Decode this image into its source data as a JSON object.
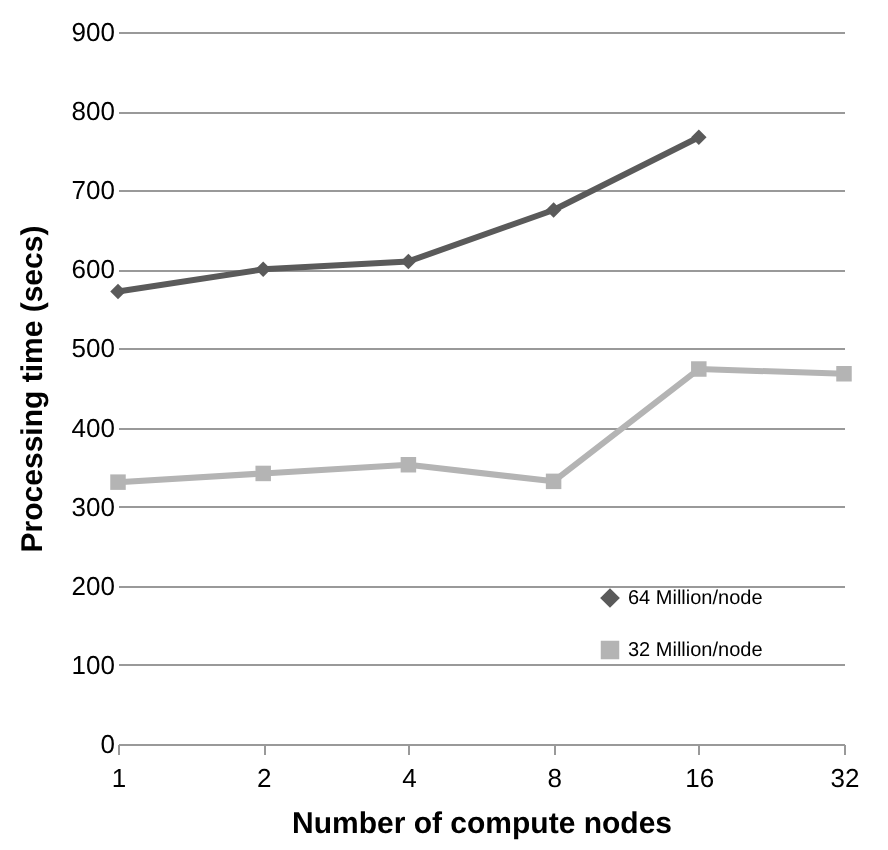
{
  "chart_data": {
    "type": "line",
    "xlabel": "Number of compute nodes",
    "ylabel": "Processing time (secs)",
    "categories": [
      "1",
      "2",
      "4",
      "8",
      "16",
      "32"
    ],
    "series": [
      {
        "name": "64 Million/node",
        "color": "#5a5a5a",
        "marker": "diamond",
        "values": [
          572,
          600,
          610,
          675,
          767,
          null
        ]
      },
      {
        "name": "32 Million/node",
        "color": "#b4b4b4",
        "marker": "square",
        "values": [
          331,
          342,
          353,
          332,
          474,
          468
        ]
      }
    ],
    "ylim": [
      0,
      900
    ],
    "yticks": [
      0,
      100,
      200,
      300,
      400,
      500,
      600,
      700,
      800,
      900
    ],
    "grid": "y",
    "legend": "bottom right",
    "line_style": "solid"
  }
}
